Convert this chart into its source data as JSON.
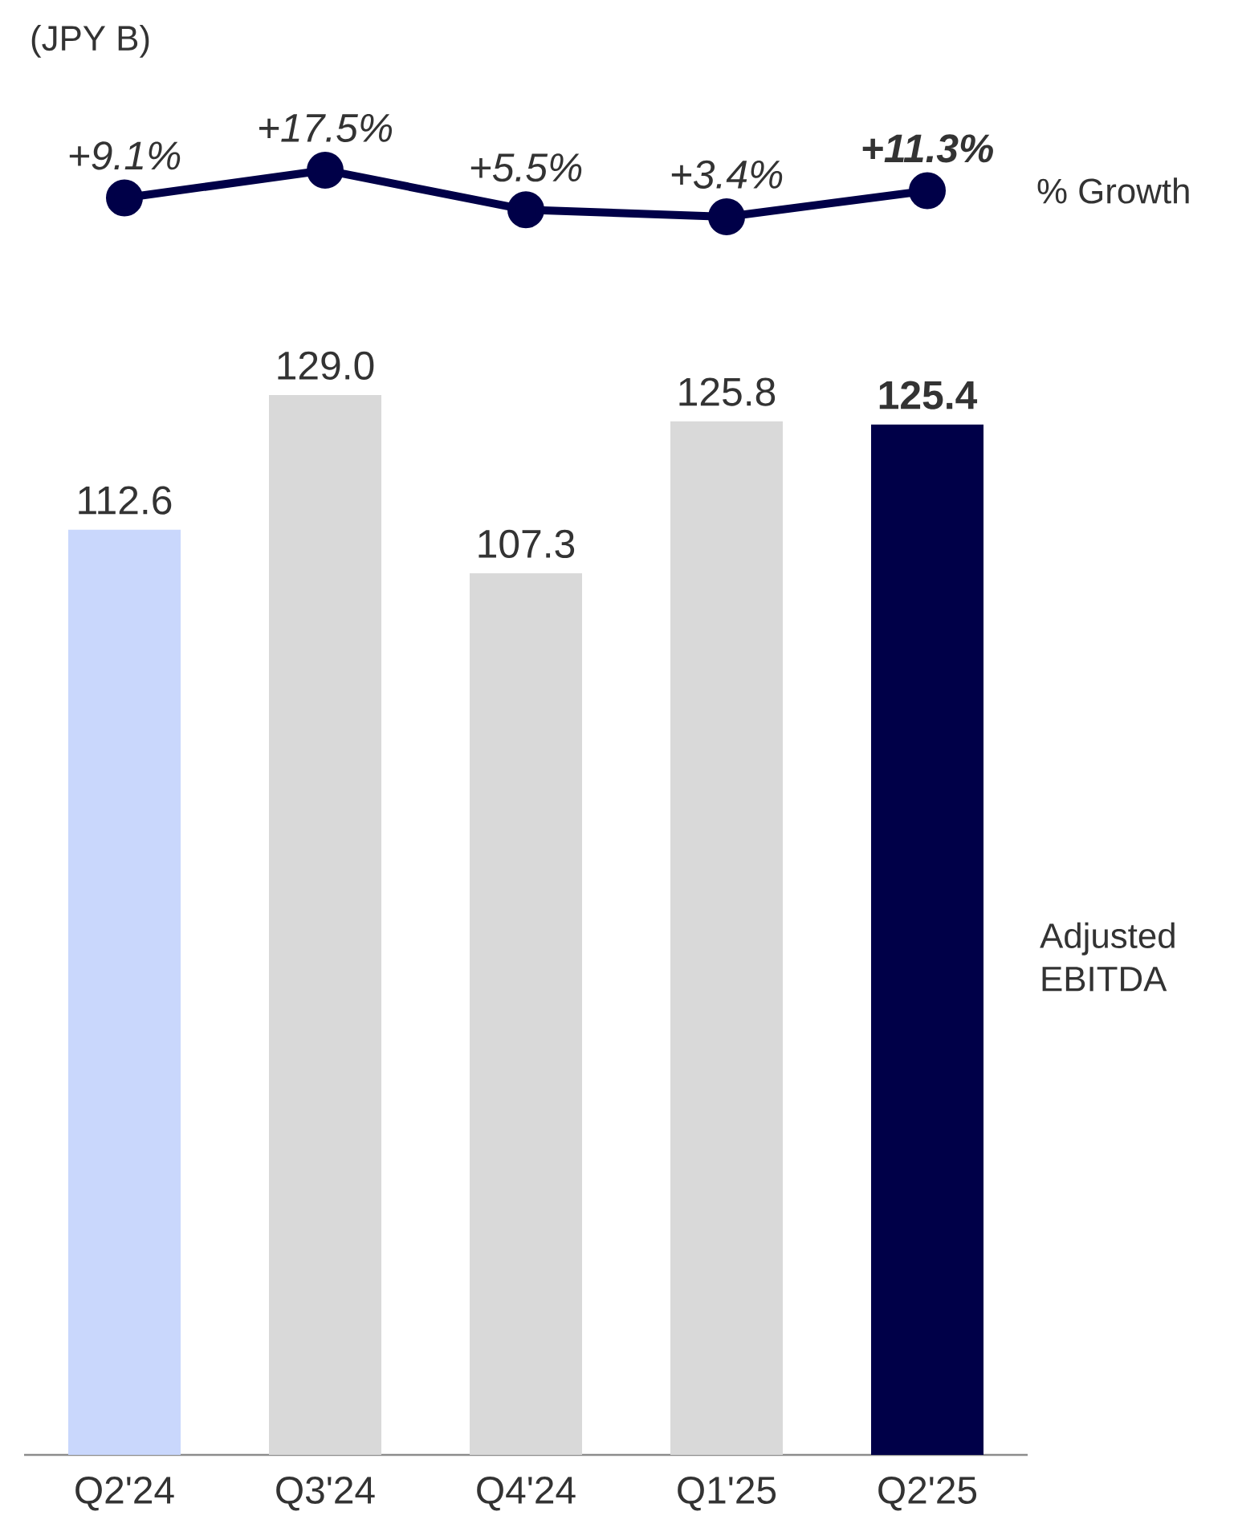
{
  "chart_data": [
    {
      "type": "line",
      "title": "(JPY B)",
      "categories": [
        null,
        null,
        null,
        null,
        null
      ],
      "marker": "circle",
      "tick_labels": false,
      "series": [
        {
          "name": "% Growth",
          "color": "#000048",
          "values": [
            9.1,
            17.5,
            5.5,
            3.4,
            11.3
          ],
          "value_labels": [
            "+9.1%",
            "+17.5%",
            "+5.5%",
            "+3.4%",
            "**+11.3%**"
          ]
        }
      ]
    },
    {
      "type": "bar",
      "categories": [
        "Q2'24",
        "Q3'24",
        "Q4'24",
        "Q1'25",
        "Q2'25"
      ],
      "tick_labels": "x",
      "series": [
        {
          "name": "Adjusted EBITDA",
          "values": [
            112.6,
            129.0,
            107.3,
            125.8,
            125.4
          ],
          "colors": [
            "#c9d7fc",
            "#d9d9d9",
            "#d9d9d9",
            "#d9d9d9",
            "#000048"
          ],
          "value_labels": [
            "112.6",
            "129.0",
            "107.3",
            "125.8",
            "**125.4**"
          ]
        }
      ]
    }
  ]
}
